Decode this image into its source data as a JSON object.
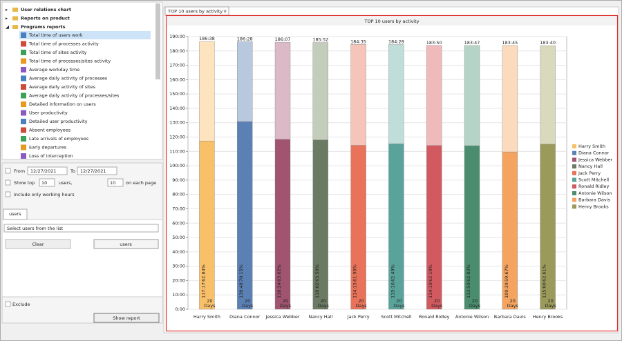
{
  "sidebar": {
    "tree": [
      "User relations chart",
      "Reports on product",
      "Programs reports"
    ],
    "items": [
      "Total time of users work",
      "Total time of processes activity",
      "Total time of sites activity",
      "Total time of processes/sites activity",
      "Average workday time",
      "Average daily activity of processes",
      "Average daily activity of sites",
      "Average daily activity of processes/sites",
      "Detailed information on users",
      "User productivity",
      "Detailed user productivity",
      "Absent employees",
      "Late arrivals of employees",
      "Early departures",
      "Loss of interception"
    ],
    "from": "From",
    "from_date": "12/27/2021",
    "to": "To",
    "to_date": "12/27/2021",
    "show_top": "Show top",
    "top_count": "10",
    "users_word": "users,",
    "page_count": "10",
    "on_each_page": "on each page",
    "working_hours": "Include only working hours",
    "tab": "users",
    "select": "Select users from the list",
    "clear": "Clear",
    "users_button": "users",
    "exclude": "Exclude",
    "show_report": "Show report"
  },
  "tab": "TOP 10 users by activity",
  "chart_data": {
    "type": "bar",
    "title": "TOP 10 users by activity",
    "categories": [
      "Harry Smith",
      "Diana Connor",
      "Jessica Webber",
      "Nancy Hall",
      "Jack Perry",
      "Scott Mitchell",
      "Ronald Ridley",
      "Antonie Wilson",
      "Barbara Davis",
      "Henry Brooks"
    ],
    "colors": [
      "#f9c06a",
      "#5b80b4",
      "#a0546f",
      "#6b7a62",
      "#e8735a",
      "#5aa39b",
      "#d05a60",
      "#4a8c6e",
      "#f4a460",
      "#9a9a5a"
    ],
    "light_colors": [
      "#fde3be",
      "#b8c8de",
      "#dcb9c6",
      "#c4ccbb",
      "#f6c5b9",
      "#bfdeda",
      "#efbabc",
      "#b6d4c6",
      "#fbdabe",
      "#d9d9bd"
    ],
    "values": [
      117.2833,
      130.8,
      118.4,
      118.0333,
      114.25,
      115.2667,
      114.1667,
      113.9833,
      109.65,
      115
    ],
    "value_labels": [
      "117:17",
      "130:48",
      "118:24",
      "118:02",
      "114:15",
      "115:16",
      "114:10",
      "113:59",
      "109:39",
      "115:00"
    ],
    "percent_labels": [
      "62.84%",
      "70.15%",
      "63.62%",
      "63.50%",
      "61.90%",
      "62.49%",
      "62.10%",
      "62.02%",
      "59.67%",
      "62.61%"
    ],
    "rest_values": [
      69.35,
      55.6667,
      67.7167,
      67.8333,
      70.3333,
      69.2,
      69.6667,
      69.8,
      74.1,
      68.6667
    ],
    "total_labels": [
      "186:38",
      "186:28",
      "186:07",
      "185:52",
      "184:35",
      "184:28",
      "183:50",
      "183:47",
      "183:45",
      "183:40"
    ],
    "days": [
      20,
      20,
      20,
      20,
      20,
      20,
      20,
      20,
      20,
      20
    ],
    "days_unit": "Days",
    "ylim": [
      0,
      190
    ],
    "yticks": [
      {
        "value": 0,
        "label": "0:00"
      },
      {
        "value": 10,
        "label": "10:00"
      },
      {
        "value": 20,
        "label": "20:00"
      },
      {
        "value": 30,
        "label": "30:00"
      },
      {
        "value": 40,
        "label": "40:00"
      },
      {
        "value": 50,
        "label": "50:00"
      },
      {
        "value": 60,
        "label": "60:00"
      },
      {
        "value": 70,
        "label": "70:00"
      },
      {
        "value": 80,
        "label": "80:00"
      },
      {
        "value": 90,
        "label": "90:00"
      },
      {
        "value": 100,
        "label": "100:00"
      },
      {
        "value": 110,
        "label": "110:00"
      },
      {
        "value": 120,
        "label": "120:00"
      },
      {
        "value": 130,
        "label": "130:00"
      },
      {
        "value": 140,
        "label": "140:00"
      },
      {
        "value": 150,
        "label": "150:00"
      },
      {
        "value": 160,
        "label": "160:00"
      },
      {
        "value": 170,
        "label": "170:00"
      },
      {
        "value": 180,
        "label": "180:00"
      },
      {
        "value": 190,
        "label": "190:00"
      }
    ],
    "grid": true,
    "legend": "right"
  }
}
